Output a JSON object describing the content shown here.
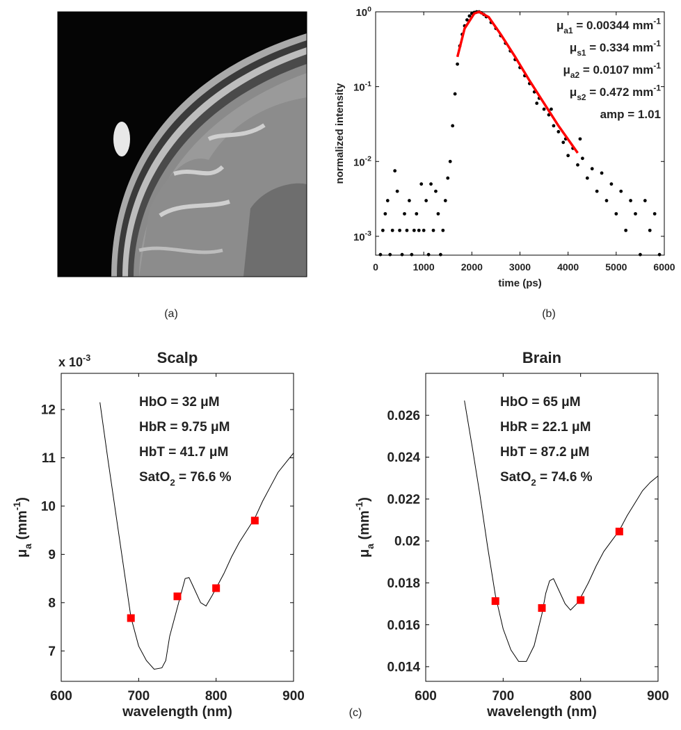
{
  "panel_labels": [
    "(a)",
    "(b)",
    "(c)"
  ],
  "chart_data": [
    {
      "type": "scatter",
      "xlabel": "time (ps)",
      "ylabel": "normalized intensity",
      "xlim": [
        0,
        6000
      ],
      "xticks": [
        0,
        1000,
        2000,
        3000,
        4000,
        5000,
        6000
      ],
      "ylim": [
        0.00056,
        1
      ],
      "log_y": true,
      "yticks": [
        {
          "value": 0.001,
          "label": [
            {
              "text": "10"
            },
            {
              "sup": "-3"
            }
          ]
        },
        {
          "value": 0.01,
          "label": [
            {
              "text": "10"
            },
            {
              "sup": "-2"
            }
          ]
        },
        {
          "value": 0.1,
          "label": [
            {
              "text": "10"
            },
            {
              "sup": "-1"
            }
          ]
        },
        {
          "value": 1,
          "label": [
            {
              "text": "10"
            },
            {
              "sup": "0"
            }
          ]
        }
      ],
      "color": "#000000",
      "x": [
        100,
        150,
        200,
        250,
        300,
        350,
        400,
        450,
        500,
        550,
        600,
        650,
        700,
        750,
        800,
        850,
        900,
        950,
        1000,
        1050,
        1100,
        1150,
        1200,
        1250,
        1300,
        1350,
        1400,
        1450,
        1500,
        1550,
        1600,
        1650,
        1700,
        1750,
        1800,
        1850,
        1900,
        1950,
        2000,
        2050,
        2100,
        2150,
        2200,
        2250,
        2300,
        2400,
        2500,
        2600,
        2700,
        2800,
        2900,
        3000,
        3100,
        3200,
        3300,
        3350,
        3400,
        3500,
        3600,
        3650,
        3700,
        3800,
        3900,
        3950,
        4000,
        4100,
        4200,
        4250,
        4300,
        4400,
        4500,
        4600,
        4700,
        4800,
        4900,
        5000,
        5100,
        5200,
        5300,
        5400,
        5500,
        5600,
        5700,
        5800,
        5900
      ],
      "values": [
        0.00057,
        0.0012,
        0.002,
        0.003,
        0.00057,
        0.0012,
        0.0075,
        0.004,
        0.0012,
        0.00057,
        0.002,
        0.0012,
        0.003,
        0.00057,
        0.0012,
        0.002,
        0.0012,
        0.005,
        0.0012,
        0.003,
        0.00057,
        0.005,
        0.0012,
        0.004,
        0.002,
        0.00057,
        0.0012,
        0.003,
        0.006,
        0.01,
        0.03,
        0.08,
        0.2,
        0.35,
        0.5,
        0.65,
        0.78,
        0.88,
        0.95,
        0.98,
        1.0,
        1.0,
        0.97,
        0.92,
        0.86,
        0.72,
        0.6,
        0.48,
        0.38,
        0.3,
        0.23,
        0.18,
        0.14,
        0.11,
        0.085,
        0.06,
        0.07,
        0.05,
        0.042,
        0.05,
        0.03,
        0.025,
        0.018,
        0.02,
        0.012,
        0.015,
        0.009,
        0.02,
        0.011,
        0.006,
        0.008,
        0.004,
        0.007,
        0.003,
        0.005,
        0.002,
        0.004,
        0.0012,
        0.003,
        0.002,
        0.00057,
        0.003,
        0.0012,
        0.002,
        0.00057
      ],
      "fit": {
        "color": "#ff0000",
        "x": [
          1700,
          1850,
          2050,
          2150,
          2350,
          2600,
          2900,
          3200,
          3500,
          3800,
          4200
        ],
        "values": [
          0.25,
          0.6,
          0.95,
          1.0,
          0.85,
          0.5,
          0.25,
          0.12,
          0.06,
          0.03,
          0.013
        ]
      },
      "annotations": [
        [
          {
            "text": "μ"
          },
          {
            "sub": "a1"
          },
          {
            "text": " = 0.00344 mm"
          },
          {
            "sup": "-1"
          }
        ],
        [
          {
            "text": "μ"
          },
          {
            "sub": "s1"
          },
          {
            "text": " = 0.334 mm"
          },
          {
            "sup": "-1"
          }
        ],
        [
          {
            "text": "μ"
          },
          {
            "sub": "a2"
          },
          {
            "text": " = 0.0107 mm"
          },
          {
            "sup": "-1"
          }
        ],
        [
          {
            "text": "μ"
          },
          {
            "sub": "s2"
          },
          {
            "text": " = 0.472 mm"
          },
          {
            "sup": "-1"
          }
        ],
        [
          {
            "text": "amp = 1.01"
          }
        ]
      ]
    },
    {
      "type": "line",
      "title": "Scalp",
      "multiplier": [
        {
          "text": "x 10"
        },
        {
          "sup": "-3"
        }
      ],
      "xlabel": "wavelength (nm)",
      "ylabel": [
        {
          "text": "μ"
        },
        {
          "sub": "a"
        },
        {
          "text": " (mm"
        },
        {
          "sup": "-1"
        },
        {
          "text": ")"
        }
      ],
      "xlim": [
        600,
        900
      ],
      "xticks": [
        600,
        700,
        800,
        900
      ],
      "ylim": [
        6.37,
        12.75
      ],
      "yticks": [
        7,
        8,
        9,
        10,
        11,
        12
      ],
      "color": "#000000",
      "x": [
        650,
        660,
        670,
        680,
        690,
        700,
        710,
        720,
        730,
        735,
        740,
        750,
        755,
        760,
        765,
        770,
        780,
        787,
        795,
        800,
        810,
        820,
        830,
        840,
        850,
        860,
        870,
        880,
        890,
        900
      ],
      "values": [
        12.15,
        11.0,
        9.9,
        8.8,
        7.7,
        7.1,
        6.8,
        6.62,
        6.65,
        6.8,
        7.3,
        7.9,
        8.2,
        8.5,
        8.52,
        8.35,
        8.0,
        7.93,
        8.15,
        8.3,
        8.6,
        8.95,
        9.25,
        9.5,
        9.75,
        10.1,
        10.4,
        10.7,
        10.9,
        11.1
      ],
      "markers": {
        "color": "#ff0000",
        "x": [
          690,
          750,
          800,
          850
        ],
        "values": [
          7.68,
          8.13,
          8.3,
          9.7
        ]
      },
      "annotations": [
        [
          {
            "text": "HbO = 32 μM"
          }
        ],
        [
          {
            "text": "HbR = 9.75 μM"
          }
        ],
        [
          {
            "text": "HbT = 41.7 μM"
          }
        ],
        [
          {
            "text": "SatO"
          },
          {
            "sub": "2"
          },
          {
            "text": " = 76.6 %"
          }
        ]
      ]
    },
    {
      "type": "line",
      "title": "Brain",
      "xlabel": "wavelength (nm)",
      "ylabel": [
        {
          "text": "μ"
        },
        {
          "sub": "a"
        },
        {
          "text": " (mm"
        },
        {
          "sup": "-1"
        },
        {
          "text": ")"
        }
      ],
      "xlim": [
        600,
        900
      ],
      "xticks": [
        600,
        700,
        800,
        900
      ],
      "ylim": [
        0.0133,
        0.028
      ],
      "yticks": [
        0.014,
        0.016,
        0.018,
        0.02,
        0.022,
        0.024,
        0.026
      ],
      "color": "#000000",
      "x": [
        650,
        660,
        670,
        680,
        690,
        700,
        710,
        720,
        730,
        740,
        750,
        755,
        760,
        765,
        770,
        780,
        787,
        795,
        800,
        810,
        820,
        830,
        840,
        850,
        860,
        870,
        880,
        890,
        900
      ],
      "values": [
        0.0267,
        0.0245,
        0.0222,
        0.0197,
        0.0174,
        0.0158,
        0.0148,
        0.01425,
        0.01425,
        0.015,
        0.0165,
        0.0175,
        0.0181,
        0.0182,
        0.0178,
        0.017,
        0.0167,
        0.017,
        0.0173,
        0.018,
        0.0188,
        0.0195,
        0.02,
        0.0205,
        0.0212,
        0.0218,
        0.0224,
        0.0228,
        0.0231
      ],
      "markers": {
        "color": "#ff0000",
        "x": [
          690,
          750,
          800,
          850
        ],
        "values": [
          0.01713,
          0.0168,
          0.01718,
          0.02045
        ]
      },
      "annotations": [
        [
          {
            "text": "HbO = 65 μM"
          }
        ],
        [
          {
            "text": "HbR = 22.1 μM"
          }
        ],
        [
          {
            "text": "HbT = 87.2 μM"
          }
        ],
        [
          {
            "text": "SatO"
          },
          {
            "sub": "2"
          },
          {
            "text": " = 74.6 %"
          }
        ]
      ]
    }
  ]
}
